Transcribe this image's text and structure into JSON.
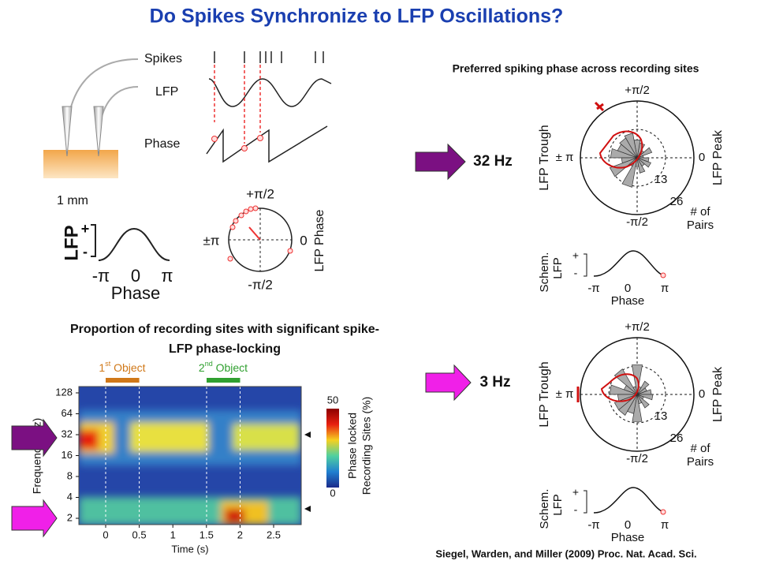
{
  "title": "Do Spikes Synchronize to LFP Oscillations?",
  "schematic": {
    "spikes": "Spikes",
    "lfp": "LFP",
    "phase": "Phase",
    "scale": "1 mm"
  },
  "phase_schematic": {
    "y_label": "LFP",
    "plus": "+",
    "minus": "-",
    "x_ticks": [
      "-π",
      "0",
      "π"
    ],
    "x_label": "Phase"
  },
  "phase_polar": {
    "top": "+π/2",
    "left": "±π",
    "right": "0",
    "bottom": "-π/2",
    "label": "LFP Phase"
  },
  "top_heading": "Preferred spiking phase across recording sites",
  "polar_panels": [
    {
      "frequency": "32 Hz",
      "top": "+π/2",
      "left": "± π",
      "right": "0",
      "bottom": "-π/2",
      "left_label": "LFP Trough",
      "right_label": "LFP Peak",
      "ring_labels": [
        "13",
        "26"
      ],
      "count_label": [
        "# of",
        "Pairs"
      ],
      "schem_label": [
        "Schem.",
        "LFP"
      ],
      "plus": "+",
      "minus": "-",
      "x_ticks": [
        "-π",
        "0",
        "π"
      ],
      "x_label": "Phase"
    },
    {
      "frequency": "3 Hz",
      "top": "+π/2",
      "left": "± π",
      "right": "0",
      "bottom": "-π/2",
      "left_label": "LFP Trough",
      "right_label": "LFP Peak",
      "ring_labels": [
        "13",
        "26"
      ],
      "count_label": [
        "# of",
        "Pairs"
      ],
      "schem_label": [
        "Schem.",
        "LFP"
      ],
      "plus": "+",
      "minus": "-",
      "x_ticks": [
        "-π",
        "0",
        "π"
      ],
      "x_label": "Phase"
    }
  ],
  "heatmap": {
    "heading": [
      "Proportion of recording sites with significant spike-",
      "LFP phase-locking"
    ],
    "events": [
      {
        "pre": "1",
        "sup": "st",
        "post": " Object"
      },
      {
        "pre": "2",
        "sup": "nd",
        "post": " Object"
      }
    ],
    "y_label": "Frequency (Hz)",
    "y_ticks": [
      "128",
      "64",
      "32",
      "16",
      "8",
      "4",
      "2"
    ],
    "x_ticks": [
      "0",
      "0.5",
      "1",
      "1.5",
      "2",
      "2.5"
    ],
    "x_label": "Time (s)",
    "colorbar_ticks": [
      "50",
      "0"
    ],
    "colorbar_label": [
      "Phase locked",
      "Recording Sites (%)"
    ]
  },
  "citation": "Siegel, Warden, and Miller (2009) Proc. Nat. Acad. Sci."
}
